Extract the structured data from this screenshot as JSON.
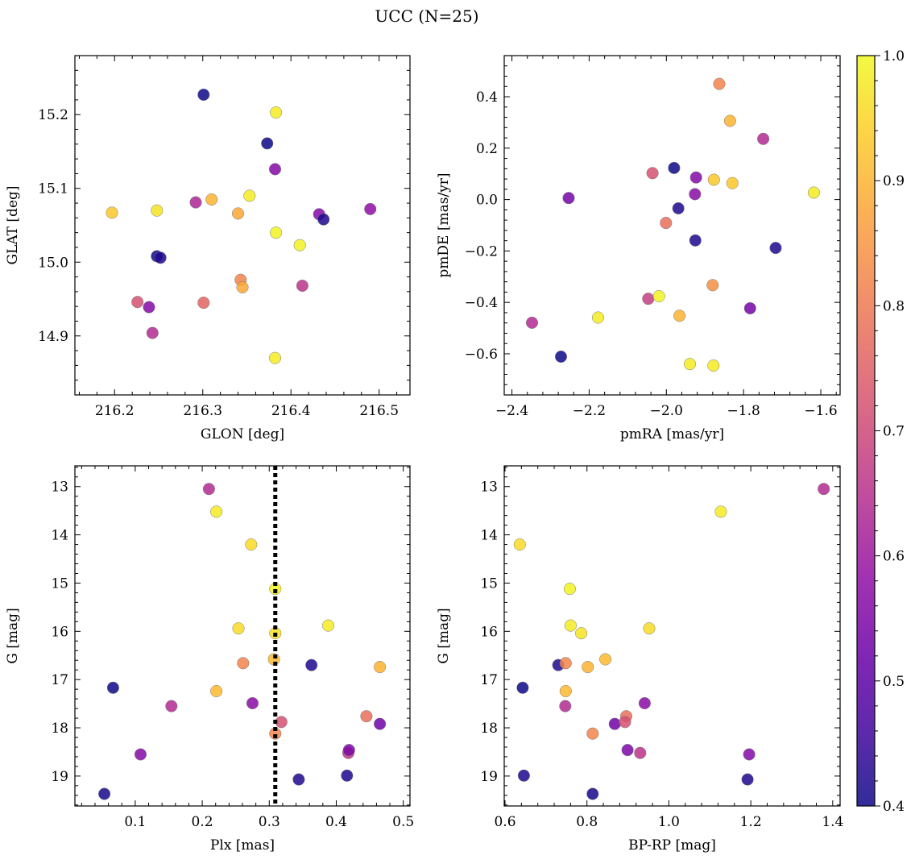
{
  "figure_title": "UCC (N=25)",
  "colorbar": {
    "ticks": [
      "0.4",
      "0.5",
      "0.6",
      "0.7",
      "0.8",
      "0.9",
      "1.0"
    ],
    "range": [
      0.4,
      1.0
    ],
    "colormap": "plasma"
  },
  "chart_data": [
    {
      "type": "scatter",
      "xlabel": "GLON [deg]",
      "ylabel": "GLAT [deg]",
      "xlim": [
        216.155,
        216.535
      ],
      "ylim": [
        14.82,
        15.28
      ],
      "xticks": [
        "216.2",
        "216.3",
        "216.4",
        "216.5"
      ],
      "yticks": [
        "14.9",
        "15.0",
        "15.1",
        "15.2"
      ],
      "points": [
        {
          "x": 216.197,
          "y": 15.067,
          "c": 0.93
        },
        {
          "x": 216.248,
          "y": 15.07,
          "c": 0.97
        },
        {
          "x": 216.31,
          "y": 15.085,
          "c": 0.9
        },
        {
          "x": 216.292,
          "y": 15.081,
          "c": 0.63
        },
        {
          "x": 216.301,
          "y": 15.227,
          "c": 0.4
        },
        {
          "x": 216.373,
          "y": 15.161,
          "c": 0.4
        },
        {
          "x": 216.383,
          "y": 15.203,
          "c": 0.98
        },
        {
          "x": 216.382,
          "y": 15.126,
          "c": 0.56
        },
        {
          "x": 216.353,
          "y": 15.09,
          "c": 0.98
        },
        {
          "x": 216.34,
          "y": 15.066,
          "c": 0.88
        },
        {
          "x": 216.383,
          "y": 15.04,
          "c": 0.99
        },
        {
          "x": 216.41,
          "y": 15.023,
          "c": 0.99
        },
        {
          "x": 216.432,
          "y": 15.065,
          "c": 0.56
        },
        {
          "x": 216.437,
          "y": 15.058,
          "c": 0.42
        },
        {
          "x": 216.49,
          "y": 15.072,
          "c": 0.58
        },
        {
          "x": 216.248,
          "y": 15.008,
          "c": 0.4
        },
        {
          "x": 216.252,
          "y": 15.006,
          "c": 0.42
        },
        {
          "x": 216.343,
          "y": 14.976,
          "c": 0.82
        },
        {
          "x": 216.345,
          "y": 14.966,
          "c": 0.88
        },
        {
          "x": 216.413,
          "y": 14.968,
          "c": 0.66
        },
        {
          "x": 216.226,
          "y": 14.946,
          "c": 0.72
        },
        {
          "x": 216.239,
          "y": 14.939,
          "c": 0.56
        },
        {
          "x": 216.301,
          "y": 14.945,
          "c": 0.76
        },
        {
          "x": 216.243,
          "y": 14.904,
          "c": 0.64
        },
        {
          "x": 216.382,
          "y": 14.87,
          "c": 0.98
        }
      ]
    },
    {
      "type": "scatter",
      "xlabel": "pmRA [mas/yr]",
      "ylabel": "pmDE [mas/yr]",
      "xlim": [
        -2.42,
        -1.55
      ],
      "ylim": [
        -0.76,
        0.56
      ],
      "xticks": [
        "−2.4",
        "−2.2",
        "−2.0",
        "−1.8",
        "−1.6"
      ],
      "yticks": [
        "−0.6",
        "−0.4",
        "−0.2",
        "0.0",
        "0.2",
        "0.4"
      ],
      "points": [
        {
          "x": -1.863,
          "y": 0.45,
          "c": 0.82
        },
        {
          "x": -1.835,
          "y": 0.306,
          "c": 0.9
        },
        {
          "x": -1.749,
          "y": 0.236,
          "c": 0.64
        },
        {
          "x": -1.98,
          "y": 0.123,
          "c": 0.4
        },
        {
          "x": -2.036,
          "y": 0.103,
          "c": 0.72
        },
        {
          "x": -1.923,
          "y": 0.086,
          "c": 0.56
        },
        {
          "x": -1.877,
          "y": 0.077,
          "c": 0.93
        },
        {
          "x": -1.829,
          "y": 0.064,
          "c": 0.93
        },
        {
          "x": -1.926,
          "y": 0.021,
          "c": 0.57
        },
        {
          "x": -1.618,
          "y": 0.027,
          "c": 0.98
        },
        {
          "x": -2.253,
          "y": 0.006,
          "c": 0.54
        },
        {
          "x": -1.969,
          "y": -0.034,
          "c": 0.42
        },
        {
          "x": -2.001,
          "y": -0.091,
          "c": 0.78
        },
        {
          "x": -1.925,
          "y": -0.159,
          "c": 0.42
        },
        {
          "x": -1.717,
          "y": -0.188,
          "c": 0.42
        },
        {
          "x": -1.88,
          "y": -0.333,
          "c": 0.84
        },
        {
          "x": -2.047,
          "y": -0.386,
          "c": 0.68
        },
        {
          "x": -2.019,
          "y": -0.376,
          "c": 0.99
        },
        {
          "x": -1.783,
          "y": -0.423,
          "c": 0.54
        },
        {
          "x": -1.966,
          "y": -0.452,
          "c": 0.9
        },
        {
          "x": -2.177,
          "y": -0.459,
          "c": 0.98
        },
        {
          "x": -2.348,
          "y": -0.479,
          "c": 0.64
        },
        {
          "x": -2.273,
          "y": -0.611,
          "c": 0.4
        },
        {
          "x": -1.939,
          "y": -0.64,
          "c": 0.98
        },
        {
          "x": -1.878,
          "y": -0.646,
          "c": 0.98
        }
      ]
    },
    {
      "type": "scatter",
      "xlabel": "Plx [mas]",
      "ylabel": "G [mag]",
      "xlim": [
        0.01,
        0.51
      ],
      "ylim": [
        19.62,
        12.57
      ],
      "y_inverted": true,
      "xticks": [
        "0.1",
        "0.2",
        "0.3",
        "0.4",
        "0.5"
      ],
      "yticks": [
        "13",
        "14",
        "15",
        "16",
        "17",
        "18",
        "19"
      ],
      "vline": {
        "x": 0.309,
        "style": "dotted",
        "color": "#000000"
      },
      "points": [
        {
          "x": 0.21,
          "y": 13.05,
          "c": 0.64
        },
        {
          "x": 0.221,
          "y": 13.52,
          "c": 0.98
        },
        {
          "x": 0.273,
          "y": 14.2,
          "c": 0.96
        },
        {
          "x": 0.309,
          "y": 15.12,
          "c": 0.99
        },
        {
          "x": 0.388,
          "y": 15.88,
          "c": 0.98
        },
        {
          "x": 0.254,
          "y": 15.94,
          "c": 0.96
        },
        {
          "x": 0.309,
          "y": 16.04,
          "c": 0.97
        },
        {
          "x": 0.261,
          "y": 16.66,
          "c": 0.82
        },
        {
          "x": 0.307,
          "y": 16.58,
          "c": 0.91
        },
        {
          "x": 0.363,
          "y": 16.7,
          "c": 0.42
        },
        {
          "x": 0.465,
          "y": 16.74,
          "c": 0.9
        },
        {
          "x": 0.067,
          "y": 17.17,
          "c": 0.4
        },
        {
          "x": 0.221,
          "y": 17.24,
          "c": 0.91
        },
        {
          "x": 0.275,
          "y": 17.49,
          "c": 0.57
        },
        {
          "x": 0.154,
          "y": 17.55,
          "c": 0.64
        },
        {
          "x": 0.445,
          "y": 17.76,
          "c": 0.78
        },
        {
          "x": 0.318,
          "y": 17.88,
          "c": 0.72
        },
        {
          "x": 0.465,
          "y": 17.92,
          "c": 0.53
        },
        {
          "x": 0.309,
          "y": 18.12,
          "c": 0.82
        },
        {
          "x": 0.108,
          "y": 18.55,
          "c": 0.56
        },
        {
          "x": 0.418,
          "y": 18.52,
          "c": 0.66
        },
        {
          "x": 0.419,
          "y": 18.46,
          "c": 0.55
        },
        {
          "x": 0.416,
          "y": 18.99,
          "c": 0.42
        },
        {
          "x": 0.344,
          "y": 19.07,
          "c": 0.42
        },
        {
          "x": 0.054,
          "y": 19.37,
          "c": 0.41
        }
      ]
    },
    {
      "type": "scatter",
      "xlabel": "BP-RP [mag]",
      "ylabel": "G [mag]",
      "xlim": [
        0.598,
        1.418
      ],
      "ylim": [
        19.62,
        12.57
      ],
      "y_inverted": true,
      "xticks": [
        "0.6",
        "0.8",
        "1.0",
        "1.2",
        "1.4"
      ],
      "yticks": [
        "13",
        "14",
        "15",
        "16",
        "17",
        "18",
        "19"
      ],
      "points": [
        {
          "x": 1.378,
          "y": 13.05,
          "c": 0.64
        },
        {
          "x": 1.127,
          "y": 13.52,
          "c": 0.98
        },
        {
          "x": 0.636,
          "y": 14.2,
          "c": 0.96
        },
        {
          "x": 0.758,
          "y": 15.12,
          "c": 0.99
        },
        {
          "x": 0.76,
          "y": 15.88,
          "c": 0.98
        },
        {
          "x": 0.952,
          "y": 15.94,
          "c": 0.96
        },
        {
          "x": 0.786,
          "y": 16.04,
          "c": 0.97
        },
        {
          "x": 0.73,
          "y": 16.7,
          "c": 0.42
        },
        {
          "x": 0.748,
          "y": 16.66,
          "c": 0.82
        },
        {
          "x": 0.845,
          "y": 16.58,
          "c": 0.91
        },
        {
          "x": 0.802,
          "y": 16.74,
          "c": 0.9
        },
        {
          "x": 0.643,
          "y": 17.17,
          "c": 0.4
        },
        {
          "x": 0.748,
          "y": 17.24,
          "c": 0.91
        },
        {
          "x": 0.747,
          "y": 17.55,
          "c": 0.64
        },
        {
          "x": 0.941,
          "y": 17.49,
          "c": 0.57
        },
        {
          "x": 0.896,
          "y": 17.76,
          "c": 0.78
        },
        {
          "x": 0.868,
          "y": 17.92,
          "c": 0.53
        },
        {
          "x": 0.893,
          "y": 17.88,
          "c": 0.72
        },
        {
          "x": 0.814,
          "y": 18.12,
          "c": 0.82
        },
        {
          "x": 0.899,
          "y": 18.46,
          "c": 0.55
        },
        {
          "x": 0.93,
          "y": 18.52,
          "c": 0.66
        },
        {
          "x": 1.196,
          "y": 18.55,
          "c": 0.56
        },
        {
          "x": 0.646,
          "y": 18.99,
          "c": 0.42
        },
        {
          "x": 1.192,
          "y": 19.07,
          "c": 0.42
        },
        {
          "x": 0.814,
          "y": 19.37,
          "c": 0.41
        }
      ]
    }
  ]
}
